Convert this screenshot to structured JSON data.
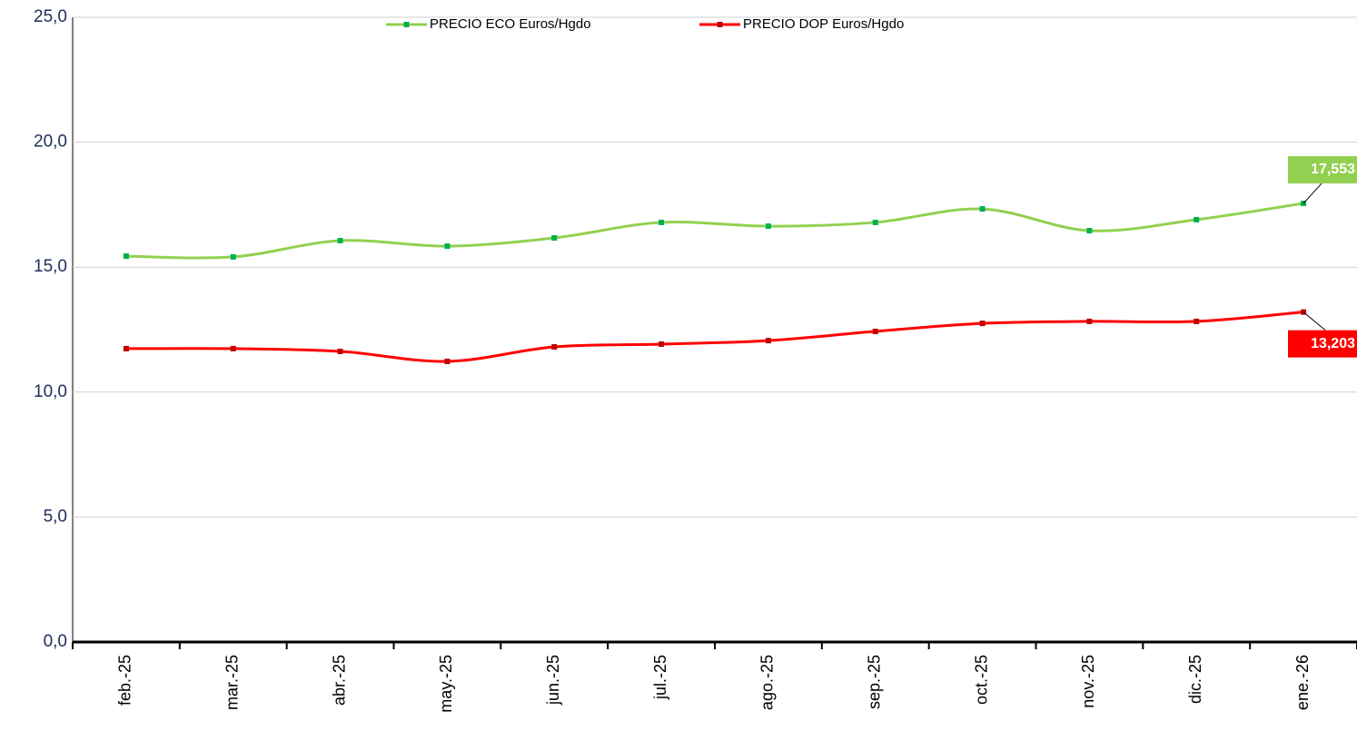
{
  "chart_data": {
    "type": "line",
    "categories": [
      "feb.-25",
      "mar.-25",
      "abr.-25",
      "may.-25",
      "jun.-25",
      "jul.-25",
      "ago.-25",
      "sep.-25",
      "oct.-25",
      "nov.-25",
      "dic.-25",
      "ene.-26"
    ],
    "series": [
      {
        "name": "PRECIO ECO Euros/Hgdo",
        "color": "#92d050",
        "marker_color": "#00b050",
        "values": [
          15.44,
          15.41,
          16.06,
          15.84,
          16.17,
          16.79,
          16.64,
          16.79,
          17.33,
          16.46,
          16.9,
          17.553
        ],
        "value_labels": [
          null,
          null,
          null,
          null,
          null,
          null,
          null,
          null,
          null,
          null,
          null,
          "17,553"
        ]
      },
      {
        "name": "PRECIO DOP Euros/Hgdo",
        "color": "#ff0000",
        "marker_color": "#c00000",
        "values": [
          11.74,
          11.74,
          11.63,
          11.23,
          11.81,
          11.92,
          12.06,
          12.43,
          12.75,
          12.83,
          12.83,
          13.203
        ],
        "value_labels": [
          null,
          null,
          null,
          null,
          null,
          null,
          null,
          null,
          null,
          null,
          null,
          "13,203"
        ]
      }
    ],
    "ylim": [
      0,
      25
    ],
    "yticks": [
      {
        "value": 0,
        "label": "0,0"
      },
      {
        "value": 5,
        "label": "5,0"
      },
      {
        "value": 10,
        "label": "10,0"
      },
      {
        "value": 15,
        "label": "15,0"
      },
      {
        "value": 20,
        "label": "20,0"
      },
      {
        "value": 25,
        "label": "25,0"
      }
    ],
    "grid": true,
    "smooth": true,
    "legend": "top"
  }
}
